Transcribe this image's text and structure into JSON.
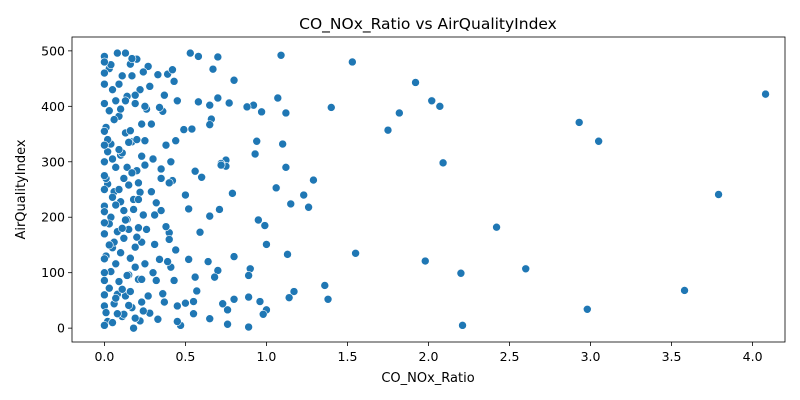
{
  "chart_data": {
    "type": "scatter",
    "title": "CO_NOx_Ratio vs AirQualityIndex",
    "xlabel": "CO_NOx_Ratio",
    "ylabel": "AirQualityIndex",
    "xlim": [
      -0.2,
      4.2
    ],
    "ylim": [
      -25,
      525
    ],
    "xticks": [
      0.0,
      0.5,
      1.0,
      1.5,
      2.0,
      2.5,
      3.0,
      3.5,
      4.0
    ],
    "xtick_labels": [
      "0.0",
      "0.5",
      "1.0",
      "1.5",
      "2.0",
      "2.5",
      "3.0",
      "3.5",
      "4.0"
    ],
    "yticks": [
      0,
      100,
      200,
      300,
      400,
      500
    ],
    "ytick_labels": [
      "0",
      "100",
      "200",
      "300",
      "400",
      "500"
    ],
    "grid": false,
    "legend": "none",
    "marker_color": "#1f77b4",
    "series": [
      {
        "points": [
          [
            4.08,
            422
          ],
          [
            3.79,
            241
          ],
          [
            3.58,
            68
          ],
          [
            3.05,
            337
          ],
          [
            2.98,
            34
          ],
          [
            2.93,
            371
          ],
          [
            2.6,
            107
          ],
          [
            2.42,
            182
          ],
          [
            2.21,
            5
          ],
          [
            2.2,
            99
          ],
          [
            2.09,
            298
          ],
          [
            2.07,
            400
          ],
          [
            2.02,
            410
          ],
          [
            1.98,
            121
          ],
          [
            1.92,
            443
          ],
          [
            1.82,
            388
          ],
          [
            1.75,
            357
          ],
          [
            1.55,
            135
          ],
          [
            1.53,
            480
          ],
          [
            1.4,
            398
          ],
          [
            1.38,
            52
          ],
          [
            1.36,
            77
          ],
          [
            1.29,
            267
          ],
          [
            1.26,
            218
          ],
          [
            1.23,
            240
          ],
          [
            1.17,
            66
          ],
          [
            1.15,
            224
          ],
          [
            1.14,
            55
          ],
          [
            1.13,
            133
          ],
          [
            1.12,
            388
          ],
          [
            1.12,
            290
          ],
          [
            1.1,
            332
          ],
          [
            1.09,
            492
          ],
          [
            1.07,
            415
          ],
          [
            1.06,
            253
          ],
          [
            1.0,
            33
          ],
          [
            0.99,
            185
          ],
          [
            1.0,
            151
          ],
          [
            0.98,
            25
          ],
          [
            0.97,
            390
          ],
          [
            0.96,
            48
          ],
          [
            0.95,
            195
          ],
          [
            0.94,
            337
          ],
          [
            0.93,
            314
          ],
          [
            0.92,
            402
          ],
          [
            0.9,
            107
          ],
          [
            0.89,
            95
          ],
          [
            0.89,
            56
          ],
          [
            0.89,
            2
          ],
          [
            0.88,
            399
          ],
          [
            0.8,
            52
          ],
          [
            0.8,
            447
          ],
          [
            0.8,
            129
          ],
          [
            0.79,
            243
          ],
          [
            0.77,
            406
          ],
          [
            0.76,
            7
          ],
          [
            0.76,
            33
          ],
          [
            0.75,
            303
          ],
          [
            0.75,
            292
          ],
          [
            0.73,
            44
          ],
          [
            0.72,
            297
          ],
          [
            0.72,
            294
          ],
          [
            0.71,
            214
          ],
          [
            0.7,
            489
          ],
          [
            0.7,
            415
          ],
          [
            0.7,
            104
          ],
          [
            0.68,
            92
          ],
          [
            0.67,
            467
          ],
          [
            0.66,
            377
          ],
          [
            0.65,
            17
          ],
          [
            0.65,
            367
          ],
          [
            0.65,
            402
          ],
          [
            0.65,
            202
          ],
          [
            0.64,
            120
          ],
          [
            0.6,
            272
          ],
          [
            0.59,
            173
          ],
          [
            0.58,
            408
          ],
          [
            0.58,
            490
          ],
          [
            0.57,
            67
          ],
          [
            0.56,
            283
          ],
          [
            0.56,
            92
          ],
          [
            0.55,
            26
          ],
          [
            0.55,
            48
          ],
          [
            0.54,
            359
          ],
          [
            0.53,
            496
          ],
          [
            0.52,
            124
          ],
          [
            0.52,
            215
          ],
          [
            0.5,
            240
          ],
          [
            0.5,
            45
          ],
          [
            0.49,
            358
          ],
          [
            0.47,
            5
          ],
          [
            0.45,
            12
          ],
          [
            0.45,
            40
          ],
          [
            0.44,
            141
          ],
          [
            0.44,
            338
          ],
          [
            0.43,
            445
          ],
          [
            0.42,
            266
          ],
          [
            0.41,
            110
          ],
          [
            0.4,
            262
          ],
          [
            0.4,
            172
          ],
          [
            0.39,
            458
          ],
          [
            0.38,
            183
          ],
          [
            0.37,
            47
          ],
          [
            0.36,
            391
          ],
          [
            0.35,
            287
          ],
          [
            0.35,
            212
          ],
          [
            0.34,
            124
          ],
          [
            0.33,
            457
          ],
          [
            0.32,
            86
          ],
          [
            0.31,
            151
          ],
          [
            0.3,
            305
          ],
          [
            0.29,
            246
          ],
          [
            0.28,
            27
          ],
          [
            0.27,
            472
          ],
          [
            0.26,
            395
          ],
          [
            0.25,
            116
          ],
          [
            0.25,
            338
          ],
          [
            0.24,
            204
          ],
          [
            0.23,
            47
          ],
          [
            0.23,
            368
          ],
          [
            0.22,
            13
          ],
          [
            0.21,
            181
          ],
          [
            0.2,
            284
          ],
          [
            0.2,
            485
          ],
          [
            0.19,
            146
          ],
          [
            0.19,
            405
          ],
          [
            0.18,
            232
          ],
          [
            0.17,
            37
          ],
          [
            0.17,
            336
          ],
          [
            0.16,
            126
          ],
          [
            0.16,
            476
          ],
          [
            0.15,
            258
          ],
          [
            0.15,
            96
          ],
          [
            0.14,
            418
          ],
          [
            0.14,
            196
          ],
          [
            0.13,
            58
          ],
          [
            0.13,
            352
          ],
          [
            0.12,
            270
          ],
          [
            0.12,
            162
          ],
          [
            0.11,
            455
          ],
          [
            0.11,
            21
          ],
          [
            0.1,
            312
          ],
          [
            0.1,
            228
          ],
          [
            0.09,
            84
          ],
          [
            0.09,
            382
          ],
          [
            0.08,
            174
          ],
          [
            0.08,
            496
          ],
          [
            0.07,
            116
          ],
          [
            0.07,
            290
          ],
          [
            0.06,
            246
          ],
          [
            0.06,
            44
          ],
          [
            0.05,
            430
          ],
          [
            0.05,
            145
          ],
          [
            0.04,
            332
          ],
          [
            0.04,
            200
          ],
          [
            0.03,
            72
          ],
          [
            0.03,
            468
          ],
          [
            0.02,
            260
          ],
          [
            0.02,
            12
          ],
          [
            0.01,
            362
          ],
          [
            0.01,
            130
          ],
          [
            0.0,
            490
          ],
          [
            0.0,
            220
          ],
          [
            0.0,
            86
          ],
          [
            0.0,
            405
          ],
          [
            0.0,
            300
          ],
          [
            0.0,
            40
          ],
          [
            0.0,
            170
          ],
          [
            0.0,
            460
          ],
          [
            0.01,
            270
          ],
          [
            0.02,
            340
          ],
          [
            0.03,
            188
          ],
          [
            0.04,
            102
          ],
          [
            0.05,
            10
          ],
          [
            0.06,
            376
          ],
          [
            0.07,
            222
          ],
          [
            0.08,
            61
          ],
          [
            0.09,
            440
          ],
          [
            0.1,
            136
          ],
          [
            0.11,
            316
          ],
          [
            0.12,
            25
          ],
          [
            0.13,
            410
          ],
          [
            0.14,
            290
          ],
          [
            0.15,
            178
          ],
          [
            0.16,
            66
          ],
          [
            0.17,
            486
          ],
          [
            0.18,
            214
          ],
          [
            0.19,
            110
          ],
          [
            0.2,
            340
          ],
          [
            0.21,
            262
          ],
          [
            0.22,
            430
          ],
          [
            0.23,
            155
          ],
          [
            0.24,
            31
          ],
          [
            0.25,
            294
          ],
          [
            0.02,
            318
          ],
          [
            0.04,
            475
          ],
          [
            0.06,
            155
          ],
          [
            0.08,
            26
          ],
          [
            0.1,
            395
          ],
          [
            0.12,
            212
          ],
          [
            0.14,
            95
          ],
          [
            0.16,
            356
          ],
          [
            0.18,
            0
          ],
          [
            0.2,
            164
          ],
          [
            0.22,
            245
          ],
          [
            0.24,
            462
          ],
          [
            0.03,
            392
          ],
          [
            0.05,
            236
          ],
          [
            0.07,
            54
          ],
          [
            0.09,
            322
          ],
          [
            0.11,
            180
          ],
          [
            0.13,
            496
          ],
          [
            0.15,
            41
          ],
          [
            0.17,
            280
          ],
          [
            0.19,
            420
          ],
          [
            0.21,
            88
          ],
          [
            0.23,
            310
          ],
          [
            0.26,
            178
          ],
          [
            0.28,
            436
          ],
          [
            0.3,
            100
          ],
          [
            0.32,
            226
          ],
          [
            0.34,
            398
          ],
          [
            0.36,
            62
          ],
          [
            0.38,
            330
          ],
          [
            0.4,
            160
          ],
          [
            0.42,
            466
          ],
          [
            0.27,
            58
          ],
          [
            0.29,
            368
          ],
          [
            0.31,
            204
          ],
          [
            0.33,
            16
          ],
          [
            0.35,
            270
          ],
          [
            0.37,
            420
          ],
          [
            0.39,
            120
          ],
          [
            0.41,
            300
          ],
          [
            0.43,
            86
          ],
          [
            0.45,
            410
          ],
          [
            0.01,
            28
          ],
          [
            0.03,
            150
          ],
          [
            0.05,
            305
          ],
          [
            0.07,
            410
          ],
          [
            0.09,
            250
          ],
          [
            0.11,
            70
          ],
          [
            0.13,
            195
          ],
          [
            0.15,
            335
          ],
          [
            0.17,
            455
          ],
          [
            0.19,
            18
          ],
          [
            0.21,
            232
          ],
          [
            0.23,
            88
          ],
          [
            0.25,
            400
          ],
          [
            0.0,
            355
          ],
          [
            0.0,
            125
          ],
          [
            0.0,
            250
          ],
          [
            0.0,
            60
          ],
          [
            0.0,
            440
          ],
          [
            0.0,
            190
          ],
          [
            0.0,
            330
          ],
          [
            0.0,
            5
          ],
          [
            0.0,
            275
          ],
          [
            0.0,
            100
          ],
          [
            0.0,
            480
          ],
          [
            0.0,
            210
          ]
        ]
      }
    ]
  }
}
